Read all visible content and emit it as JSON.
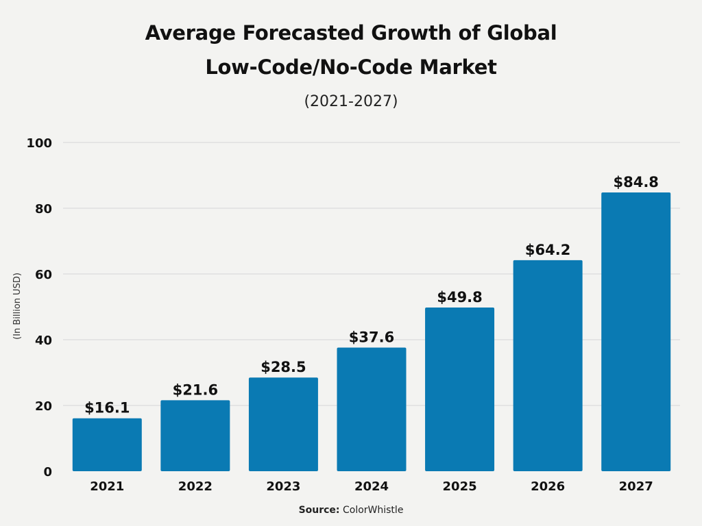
{
  "chart_data": {
    "type": "bar",
    "title_line1": "Average Forecasted Growth of Global",
    "title_line2": "Low-Code/No-Code Market",
    "subtitle": "(2021-2027)",
    "ylabel": "(In Billion USD)",
    "xlabel": "",
    "categories": [
      "2021",
      "2022",
      "2023",
      "2024",
      "2025",
      "2026",
      "2027"
    ],
    "values": [
      16.1,
      21.6,
      28.5,
      37.6,
      49.8,
      64.2,
      84.8
    ],
    "value_labels": [
      "$16.1",
      "$21.6",
      "$28.5",
      "$37.6",
      "$49.8",
      "$64.2",
      "$84.8"
    ],
    "ylim": [
      0,
      100
    ],
    "yticks": [
      0,
      20,
      40,
      60,
      80,
      100
    ],
    "grid": true,
    "bar_color": "#0a7ab3"
  },
  "source": {
    "label": "Source:",
    "name": "ColorWhistle"
  }
}
